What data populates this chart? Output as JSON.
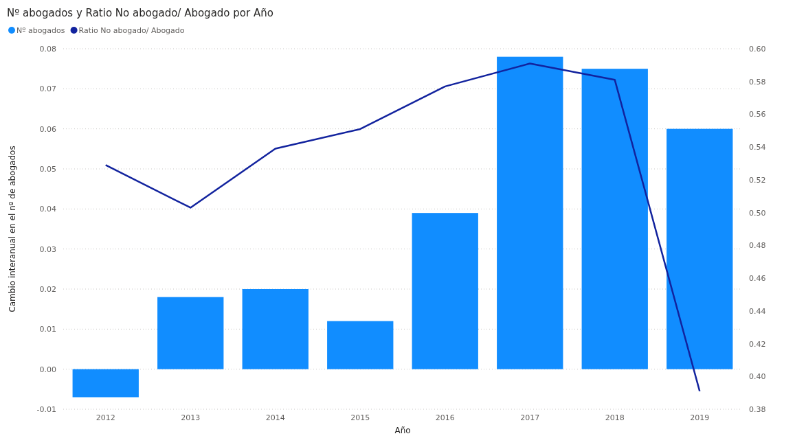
{
  "chart_data": {
    "type": "bar",
    "title": "Nº abogados y Ratio No abogado/ Abogado por Año",
    "xlabel": "Año",
    "ylabel": "Cambio interanual en el nº de abogados",
    "categories": [
      "2012",
      "2013",
      "2014",
      "2015",
      "2016",
      "2017",
      "2018",
      "2019"
    ],
    "series": [
      {
        "name": "Nº abogados",
        "color": "#118dff",
        "values": [
          -0.007,
          0.018,
          0.02,
          0.012,
          0.039,
          0.078,
          0.075,
          0.06
        ]
      },
      {
        "name": "Ratio No abogado/ Abogado",
        "type": "line",
        "axis": "y2",
        "color": "#12239e",
        "values": [
          0.529,
          0.503,
          0.539,
          0.551,
          0.577,
          0.591,
          0.581,
          0.391
        ]
      }
    ],
    "ylim": [
      -0.01,
      0.08
    ],
    "yticks": [
      {
        "value": -0.01,
        "label": "-0.01"
      },
      {
        "value": 0,
        "label": "0.00"
      },
      {
        "value": 0.01,
        "label": "0.01"
      },
      {
        "value": 0.02,
        "label": "0.02"
      },
      {
        "value": 0.03,
        "label": "0.03"
      },
      {
        "value": 0.04,
        "label": "0.04"
      },
      {
        "value": 0.05,
        "label": "0.05"
      },
      {
        "value": 0.06,
        "label": "0.06"
      },
      {
        "value": 0.07,
        "label": "0.07"
      },
      {
        "value": 0.08,
        "label": "0.08"
      }
    ],
    "y2lim": [
      0.38,
      0.6
    ],
    "y2ticks": [
      0.38,
      {
        "value": 0.4,
        "label": "0.40"
      },
      0.42,
      0.44,
      0.46,
      0.48,
      {
        "value": 0.5,
        "label": "0.50"
      },
      0.52,
      0.54,
      0.56,
      0.58,
      {
        "value": 0.6,
        "label": "0.60"
      }
    ],
    "grid": "y",
    "legend": "top left",
    "line_style": "solid",
    "marker": "none"
  }
}
